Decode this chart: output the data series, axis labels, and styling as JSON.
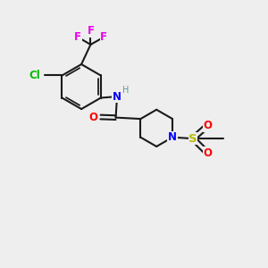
{
  "background_color": "#eeeeee",
  "bond_color": "#1a1a1a",
  "atom_colors": {
    "N": "#0000ff",
    "O": "#ff0000",
    "S": "#b8b800",
    "Cl": "#00bb00",
    "F": "#ee00ee",
    "C": "#1a1a1a",
    "H": "#5a9a9a"
  },
  "figsize": [
    3.0,
    3.0
  ],
  "dpi": 100,
  "lw": 1.5,
  "fs": 8.5
}
